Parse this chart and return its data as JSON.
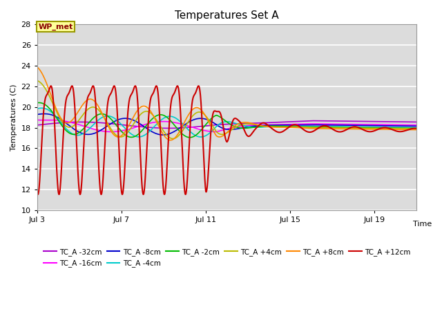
{
  "title": "Temperatures Set A",
  "xlabel": "Time",
  "ylabel": "Temperatures (C)",
  "ylim": [
    10,
    28
  ],
  "yticks": [
    10,
    12,
    14,
    16,
    18,
    20,
    22,
    24,
    26,
    28
  ],
  "xlim_days": [
    3,
    21
  ],
  "xtick_labels": [
    "Jul 3",
    "Jul 7",
    "Jul 11",
    "Jul 15",
    "Jul 19"
  ],
  "xtick_positions": [
    3,
    7,
    11,
    15,
    19
  ],
  "bg_color": "#dcdcdc",
  "fig_color": "#ffffff",
  "annotation_text": "WP_met",
  "annotation_bg": "#ffff99",
  "annotation_border": "#999900",
  "annotation_text_color": "#880000",
  "series_colors": {
    "TC_A -32cm": "#aa00cc",
    "TC_A -16cm": "#ff00ff",
    "TC_A -8cm": "#0000cc",
    "TC_A -4cm": "#00cccc",
    "TC_A -2cm": "#00bb00",
    "TC_A +4cm": "#bbbb00",
    "TC_A +8cm": "#ff8800",
    "TC_A +12cm": "#cc0000"
  },
  "legend_order": [
    "TC_A -32cm",
    "TC_A -16cm",
    "TC_A -8cm",
    "TC_A -4cm",
    "TC_A -2cm",
    "TC_A +4cm",
    "TC_A +8cm",
    "TC_A +12cm"
  ]
}
